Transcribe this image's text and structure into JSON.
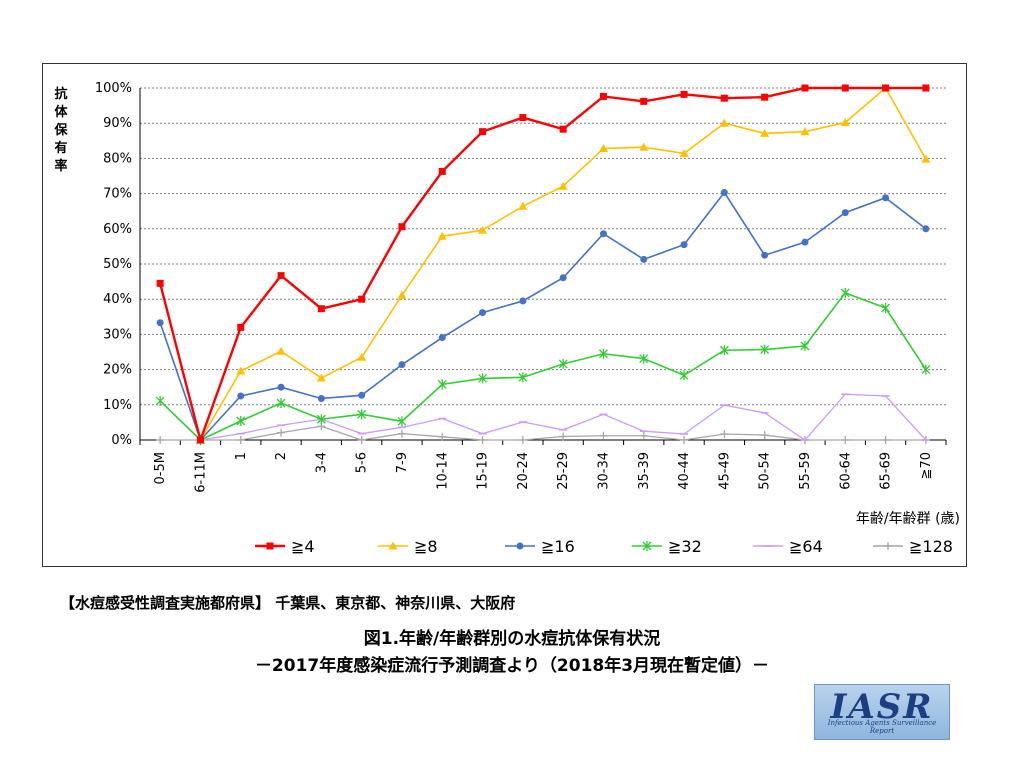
{
  "chart_data": {
    "type": "line",
    "ylabel": "抗体保有率",
    "xlabel": "年齢/年齢群 (歳)",
    "ylim": [
      0,
      100
    ],
    "y_ticks": [
      "0%",
      "10%",
      "20%",
      "30%",
      "40%",
      "50%",
      "60%",
      "70%",
      "80%",
      "90%",
      "100%"
    ],
    "categories": [
      "0-5M",
      "6-11M",
      "1",
      "2",
      "3-4",
      "5-6",
      "7-9",
      "10-14",
      "15-19",
      "20-24",
      "25-29",
      "30-34",
      "35-39",
      "40-44",
      "45-49",
      "50-54",
      "55-59",
      "60-64",
      "65-69",
      "≧70"
    ],
    "grid": "horizontal",
    "legend": "bottom",
    "series": [
      {
        "name": "≧4",
        "color": "#ff0000",
        "marker": "square",
        "values": [
          44.5,
          0,
          32,
          46.7,
          37.3,
          40,
          60.6,
          76.3,
          87.6,
          91.6,
          88.3,
          97.6,
          96.2,
          98.2,
          97.1,
          97.4,
          100,
          100,
          100,
          100
        ]
      },
      {
        "name": "≧8",
        "color": "#ffc000",
        "marker": "triangle",
        "values": [
          null,
          0,
          19.6,
          25.2,
          17.6,
          23.5,
          41.1,
          57.9,
          59.6,
          66.4,
          72.1,
          82.8,
          83.2,
          81.4,
          90,
          87.1,
          87.6,
          90.2,
          100,
          79.8
        ]
      },
      {
        "name": "≧16",
        "color": "#4472c4",
        "marker": "circle",
        "values": [
          33.3,
          0,
          12.5,
          15,
          11.8,
          12.7,
          21.4,
          29.1,
          36.2,
          39.5,
          46.1,
          58.6,
          51.3,
          55.5,
          70.3,
          52.5,
          56.2,
          64.6,
          68.8,
          60
        ]
      },
      {
        "name": "≧32",
        "color": "#33cc33",
        "marker": "asterisk",
        "values": [
          11.1,
          0,
          5.4,
          10.5,
          5.9,
          7.3,
          5.3,
          15.8,
          17.5,
          17.8,
          21.6,
          24.5,
          23.1,
          18.4,
          25.5,
          25.7,
          26.7,
          41.8,
          37.5,
          20
        ]
      },
      {
        "name": "≧64",
        "color": "#cc99ff",
        "marker": "dash",
        "values": [
          null,
          0,
          1.8,
          4.2,
          5.9,
          1.8,
          3.6,
          6.1,
          1.8,
          5.1,
          2.9,
          7.3,
          2.5,
          1.7,
          9.9,
          7.7,
          0,
          13,
          12.5,
          0
        ]
      },
      {
        "name": "≧128",
        "color": "#a6a6a6",
        "marker": "plus",
        "values": [
          0,
          0,
          0,
          2.1,
          3.9,
          0,
          1.8,
          0.9,
          0,
          0,
          1,
          1.2,
          1.2,
          0,
          1.7,
          1.4,
          0,
          0,
          0,
          0
        ]
      }
    ]
  },
  "caption": "【水痘感受性調査実施都府県】 千葉県、東京都、神奈川県、大阪府",
  "title_line1": "図1.年齢/年齢群別の水痘抗体保有状況",
  "title_line2": "－2017年度感染症流行予測調査より（2018年3月現在暫定値）－",
  "logo": {
    "main": "IASR",
    "sub": "Infectious Agents Surveillance Report"
  }
}
